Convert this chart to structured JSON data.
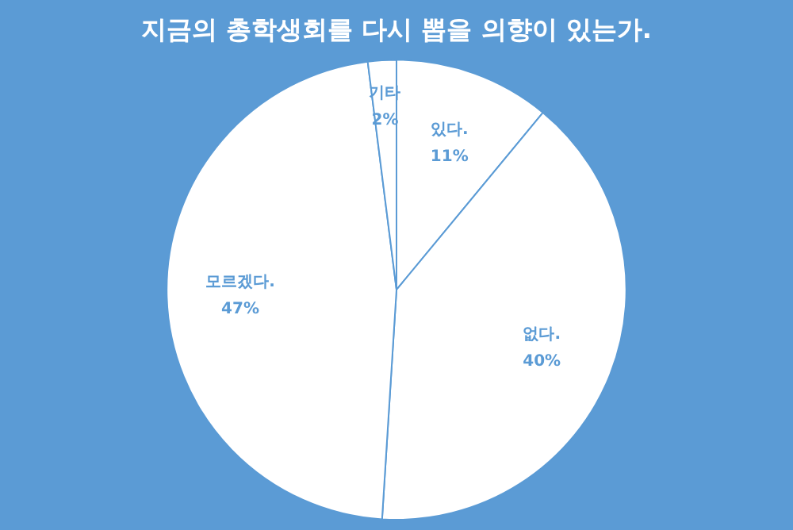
{
  "chart_data": {
    "type": "pie",
    "title": "지금의 총학생회를 다시 뽑을 의향이 있는가.",
    "categories": [
      "있다.",
      "없다.",
      "모르겠다.",
      "기타"
    ],
    "values": [
      11,
      40,
      47,
      2
    ],
    "colors": [
      "#ffffff",
      "#ffffff",
      "#ffffff",
      "#ffffff"
    ],
    "value_labels": [
      "11%",
      "40%",
      "47%",
      "2%"
    ],
    "legend": false
  }
}
